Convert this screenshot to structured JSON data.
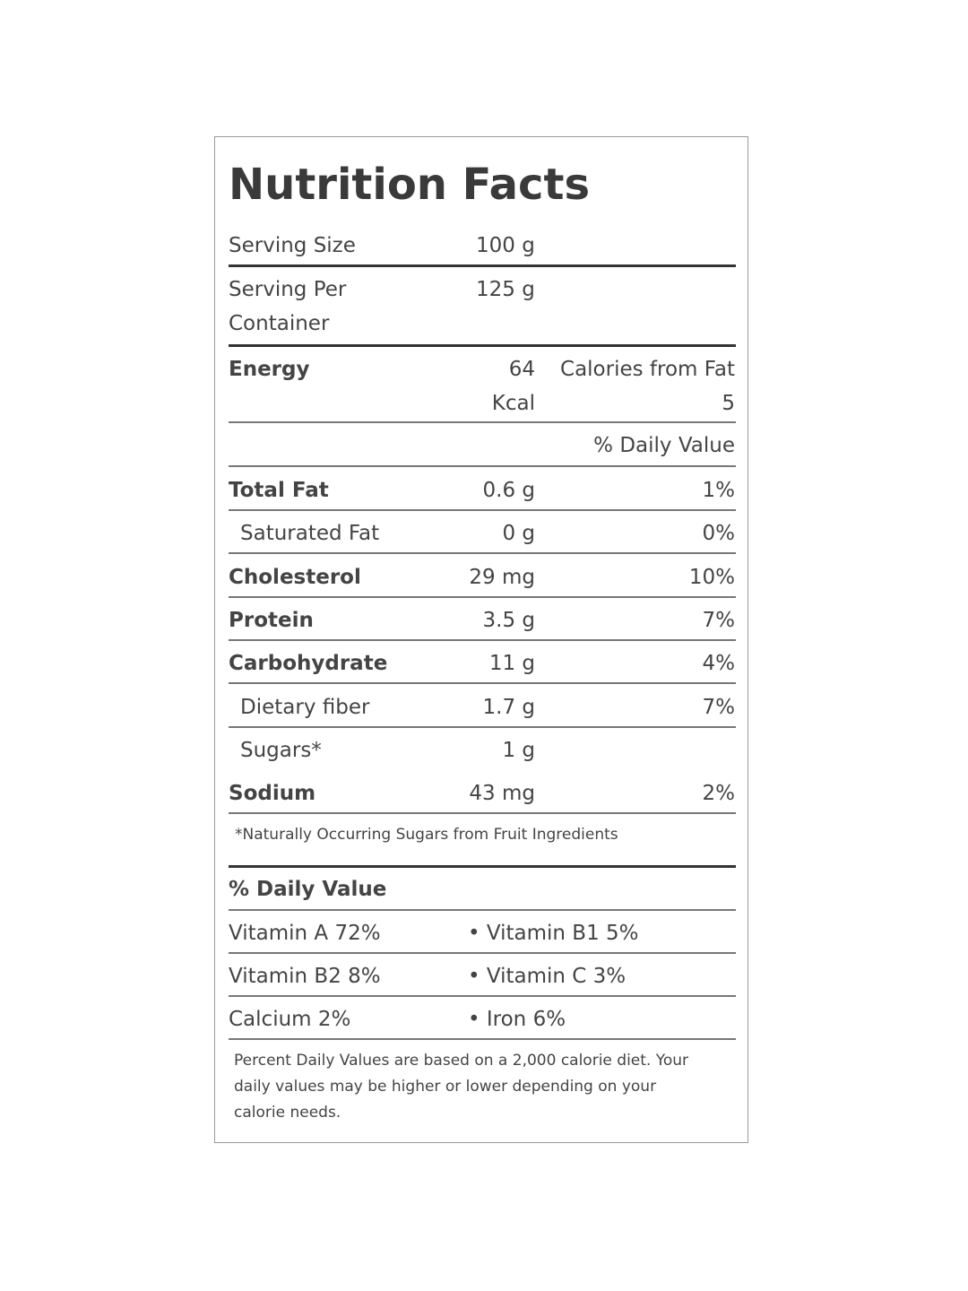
{
  "title": "Nutrition Facts",
  "serving_size": {
    "label": "Serving Size",
    "value": "100 g"
  },
  "serving_per_container": {
    "label": [
      "Serving Per",
      "Container"
    ],
    "value": "125 g"
  },
  "energy": {
    "label": "Energy",
    "amount": [
      "64",
      "Kcal"
    ],
    "calories_from_fat": [
      "Calories from Fat",
      "5"
    ]
  },
  "daily_value_header": "% Daily Value",
  "nutrients": [
    {
      "name": "Total Fat",
      "amount": "0.6 g",
      "dv": "1%"
    },
    {
      "name": "Saturated Fat",
      "amount": "0 g",
      "dv": "0%"
    },
    {
      "name": "Cholesterol",
      "amount": "29 mg",
      "dv": "10%"
    },
    {
      "name": "Protein",
      "amount": "3.5 g",
      "dv": "7%"
    },
    {
      "name": "Carbohydrate",
      "amount": "11 g",
      "dv": "4%"
    },
    {
      "name": "Dietary fiber",
      "amount": "1.7 g",
      "dv": "7%"
    },
    {
      "name": "Sugars*",
      "amount": "1 g"
    },
    {
      "name": "Sodium",
      "amount": "43 mg",
      "dv": "2%"
    }
  ],
  "sugar_note": "*Naturally Occurring Sugars from Fruit Ingredients",
  "vitamins_header": "% Daily Value",
  "vitamins": [
    [
      "Vitamin A 72%",
      "• Vitamin B1 5%"
    ],
    [
      "Vitamin B2 8%",
      "• Vitamin C 3%"
    ],
    [
      "Calcium 2%",
      "• Iron 6%"
    ]
  ],
  "footnote": [
    "Percent Daily Values are based on a 2,000 calorie diet. Your",
    "daily values may be higher or lower depending on your",
    "calorie needs."
  ]
}
